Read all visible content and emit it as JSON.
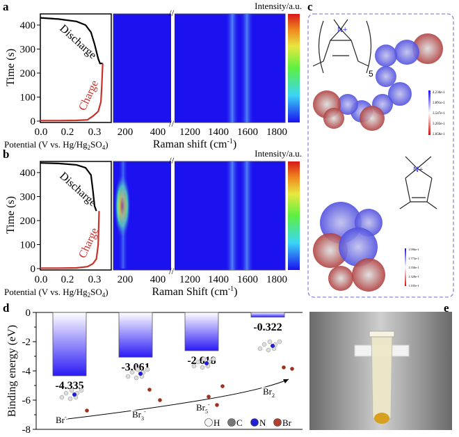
{
  "panels": {
    "a": "a",
    "b": "b",
    "c": "c",
    "d": "d",
    "e": "e"
  },
  "colors": {
    "heat_low": "#1c12f0",
    "heat_peak": "#4a8cf5",
    "charge": "#c8302a",
    "discharge": "#000000",
    "bar": "#2a1af5",
    "box": "#8a86e0"
  },
  "chart_data": [
    {
      "type": "line",
      "panel": "a",
      "ylabel": "Time (s)",
      "xlabel": "Potential (V vs. Hg/Hg2SO4)",
      "xticks": [
        "0.0",
        "0.2",
        "0.3"
      ],
      "yticks": [
        "0",
        "100",
        "200",
        "300",
        "400"
      ],
      "ylim": [
        0,
        450
      ],
      "series": [
        {
          "name": "Discharge",
          "x": [
            0,
            0.1,
            0.2,
            0.25,
            0.28,
            0.3,
            0.32,
            0.33,
            0.345
          ],
          "y": [
            430,
            425,
            415,
            400,
            370,
            320,
            260,
            240,
            240
          ]
        },
        {
          "name": "Charge",
          "x": [
            0,
            0.1,
            0.2,
            0.26,
            0.29,
            0.32,
            0.335,
            0.34,
            0.345
          ],
          "y": [
            2,
            2,
            3,
            5,
            20,
            40,
            80,
            150,
            240
          ]
        }
      ]
    },
    {
      "type": "heatmap",
      "panel": "a",
      "xlabel": "Raman shift (cm-1)",
      "colorbar_label": "Intensity/a.u.",
      "xticks": [
        "200",
        "400",
        "1200",
        "1400",
        "1600",
        "1800"
      ],
      "peaks_cm1": [
        1350,
        1600
      ],
      "axis_break": true
    },
    {
      "type": "line",
      "panel": "b",
      "ylabel": "Time (s)",
      "xlabel": "Potential (V vs. Hg/Hg2SO4)",
      "xticks": [
        "0.0",
        "0.2",
        "0.3"
      ],
      "yticks": [
        "0",
        "100",
        "200",
        "300",
        "400"
      ],
      "ylim": [
        0,
        450
      ],
      "series": [
        {
          "name": "Discharge",
          "x": [
            0,
            0.1,
            0.2,
            0.25,
            0.28,
            0.29,
            0.3,
            0.31
          ],
          "y": [
            440,
            438,
            432,
            420,
            390,
            330,
            260,
            240
          ]
        },
        {
          "name": "Charge",
          "x": [
            0,
            0.1,
            0.2,
            0.26,
            0.29,
            0.31,
            0.32,
            0.325
          ],
          "y": [
            2,
            2,
            3,
            8,
            20,
            40,
            100,
            240
          ]
        }
      ]
    },
    {
      "type": "heatmap",
      "panel": "b",
      "xlabel": "Raman Shift (cm-1)",
      "colorbar_label": "Intensity/a.u.",
      "xticks": [
        "200",
        "400",
        "1200",
        "1400",
        "1600",
        "1800"
      ],
      "peaks_cm1": [
        180,
        1350,
        1600
      ],
      "hotspot": {
        "cm1": 180,
        "time_range": [
          170,
          360
        ]
      },
      "axis_break": true
    },
    {
      "type": "bar",
      "panel": "d",
      "ylabel": "Binding energy (eV)",
      "yticks": [
        "0",
        "-2",
        "-4",
        "-6",
        "-8"
      ],
      "ylim": [
        -8,
        0
      ],
      "categories": [
        "Br-",
        "Br3-",
        "Br5-",
        "Br2"
      ],
      "values": [
        -4.335,
        -3.061,
        -2.618,
        -0.322
      ],
      "labels": [
        "-4.335",
        "-3.061",
        "-2.618",
        "-0.322"
      ],
      "legend": [
        "H",
        "C",
        "N",
        "Br"
      ]
    }
  ],
  "c": {
    "cation_label": "N+",
    "repeat": "5",
    "scale1": [
      "4.236e-1",
      "3.891e-1",
      "3.547e-1",
      "3.202e-1",
      "2.858e-1"
    ],
    "scale2": [
      "1.996e-1",
      "1.773e-1",
      "1.550e-1",
      "1.328e-1",
      "1.105e-1"
    ]
  }
}
